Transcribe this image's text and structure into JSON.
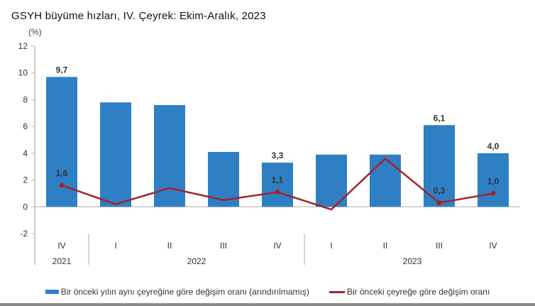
{
  "chart_data": {
    "type": "bar+line",
    "title": "GSYH büyüme hızları, IV. Çeyrek: Ekim-Aralık, 2023",
    "ylabel": "(%)",
    "ylim": [
      -2,
      12
    ],
    "yticks": [
      -2,
      0,
      2,
      4,
      6,
      8,
      10,
      12
    ],
    "categories": [
      "IV",
      "I",
      "II",
      "III",
      "IV",
      "I",
      "II",
      "III",
      "IV"
    ],
    "year_groups": [
      {
        "label": "2021",
        "count": 1
      },
      {
        "label": "2022",
        "count": 4
      },
      {
        "label": "2023",
        "count": 4
      }
    ],
    "series": [
      {
        "name": "Bir önceki yılın aynı çeyreğine göre değişim oranı (arındırılmamış)",
        "type": "bar",
        "color": "#2e7fc4",
        "values": [
          9.7,
          7.8,
          7.6,
          4.1,
          3.3,
          3.9,
          3.9,
          6.1,
          4.0
        ],
        "data_labels": [
          "9,7",
          "",
          "",
          "",
          "3,3",
          "",
          "",
          "6,1",
          "4,0"
        ]
      },
      {
        "name": "Bir önceki çeyreğe göre değişim oranı",
        "type": "line",
        "color": "#a3232b",
        "values": [
          1.6,
          0.2,
          1.4,
          0.5,
          1.1,
          -0.2,
          3.6,
          0.3,
          1.0
        ],
        "data_labels": [
          "1,6",
          "",
          "",
          "",
          "1,1",
          "",
          "",
          "0,3",
          "1,0"
        ]
      }
    ],
    "grid": false,
    "legend_position": "bottom"
  }
}
